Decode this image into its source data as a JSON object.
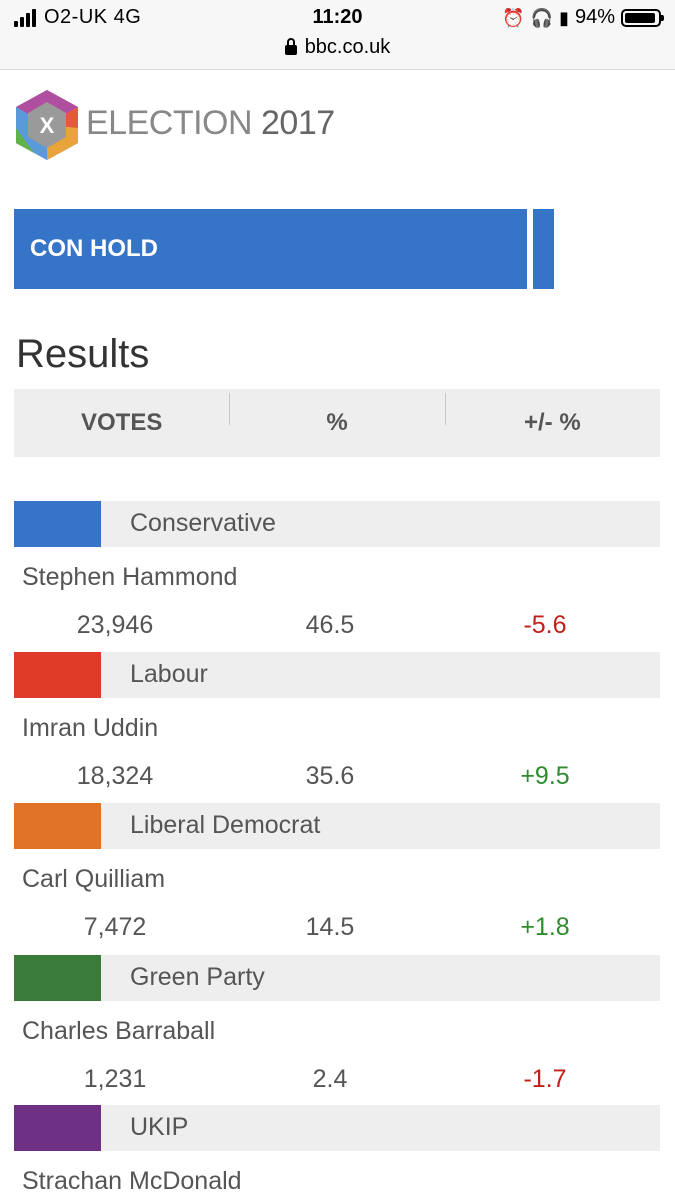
{
  "status_bar": {
    "carrier": "O2-UK  4G",
    "time": "11:20",
    "battery": "94%",
    "battery_level": 0.94,
    "url": "bbc.co.uk"
  },
  "header": {
    "logo_letter": "X",
    "brand_election": "ELECTION",
    "brand_year": "2017"
  },
  "banner": {
    "label": "CON HOLD",
    "color": "#3574c6"
  },
  "results": {
    "title": "Results",
    "columns": [
      "VOTES",
      "%",
      "+/- %"
    ]
  },
  "parties": [
    {
      "party": "Conservative",
      "color": "#3574c6",
      "candidate": "Stephen Hammond",
      "votes": "23,946",
      "pct": "46.5",
      "change": "-5.6"
    },
    {
      "party": "Labour",
      "color": "#e03a28",
      "candidate": "Imran Uddin",
      "votes": "18,324",
      "pct": "35.6",
      "change": "+9.5"
    },
    {
      "party": "Liberal Democrat",
      "color": "#e07328",
      "candidate": "Carl Quilliam",
      "votes": "7,472",
      "pct": "14.5",
      "change": "+1.8"
    },
    {
      "party": "Green Party",
      "color": "#3a7a3a",
      "candidate": "Charles Barraball",
      "votes": "1,231",
      "pct": "2.4",
      "change": "-1.7"
    },
    {
      "party": "UKIP",
      "color": "#6e3085",
      "candidate": "Strachan McDonald",
      "votes": "",
      "pct": "",
      "change": ""
    }
  ]
}
